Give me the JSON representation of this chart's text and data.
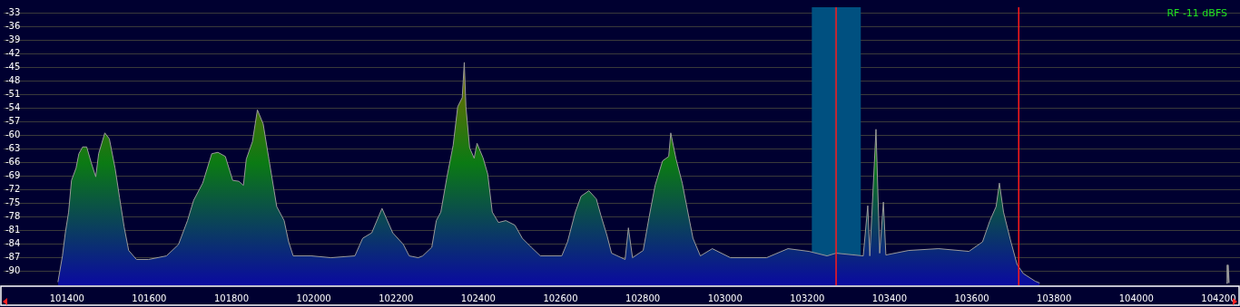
{
  "chart_data": {
    "type": "area",
    "xlim": [
      101246,
      104252
    ],
    "ylim": [
      -93.2,
      -31.7
    ],
    "xticks": [
      101400,
      101600,
      101800,
      102000,
      102200,
      102400,
      102600,
      102800,
      103000,
      103200,
      103400,
      103600,
      103800,
      104000,
      104200
    ],
    "yticks": [
      -90,
      -87,
      -84,
      -81,
      -78,
      -75,
      -72,
      -69,
      -66,
      -63,
      -60,
      -57,
      -54,
      -51,
      -48,
      -45,
      -42,
      -39,
      -36,
      -33
    ],
    "grid": "y",
    "series": [
      {
        "color": "#0b7a14",
        "x": [
          101378,
          101389,
          101396,
          101404,
          101411,
          101422,
          101429,
          101438,
          101448,
          101459,
          101470,
          101477,
          101492,
          101503,
          101517,
          101528,
          101539,
          101550,
          101569,
          101598,
          101642,
          101671,
          101693,
          101708,
          101730,
          101752,
          101767,
          101785,
          101803,
          101818,
          101829,
          101836,
          101851,
          101863,
          101877,
          101891,
          101910,
          101928,
          101939,
          101950,
          101994,
          102042,
          102100,
          102119,
          102141,
          102166,
          102192,
          102218,
          102232,
          102254,
          102265,
          102287,
          102298,
          102309,
          102324,
          102339,
          102350,
          102361,
          102366,
          102370,
          102379,
          102390,
          102397,
          102412,
          102423,
          102434,
          102449,
          102467,
          102489,
          102507,
          102529,
          102551,
          102603,
          102617,
          102636,
          102650,
          102669,
          102687,
          102698,
          102713,
          102724,
          102757,
          102765,
          102775,
          102801,
          102815,
          102830,
          102848,
          102863,
          102868,
          102881,
          102896,
          102907,
          102922,
          102940,
          102969,
          103013,
          103101,
          103153,
          103204,
          103248,
          103270,
          103336,
          103347,
          103352,
          103367,
          103376,
          103385,
          103391,
          103446,
          103519,
          103593,
          103626,
          103644,
          103659,
          103667,
          103677,
          103695,
          103710,
          103725,
          103754,
          103765
        ],
        "values": [
          -92.5,
          -86.7,
          -81.6,
          -77.0,
          -70.0,
          -67.3,
          -64.1,
          -62.6,
          -62.6,
          -66.1,
          -69.2,
          -64.1,
          -59.5,
          -60.8,
          -67.3,
          -73.9,
          -80.3,
          -85.5,
          -87.5,
          -87.5,
          -86.7,
          -84.2,
          -78.9,
          -74.4,
          -70.6,
          -64.1,
          -63.8,
          -64.7,
          -70.0,
          -70.2,
          -71.1,
          -65.3,
          -61.4,
          -54.4,
          -57.5,
          -65.3,
          -75.8,
          -78.9,
          -83.6,
          -86.7,
          -86.7,
          -87.1,
          -86.7,
          -82.8,
          -81.6,
          -76.2,
          -81.6,
          -84.2,
          -86.7,
          -87.1,
          -86.7,
          -84.8,
          -78.9,
          -77.0,
          -69.2,
          -62.2,
          -53.7,
          -51.7,
          -43.9,
          -53.7,
          -62.8,
          -65.1,
          -61.8,
          -65.1,
          -68.6,
          -77.0,
          -79.3,
          -78.9,
          -79.9,
          -82.8,
          -84.8,
          -86.7,
          -86.7,
          -83.6,
          -77.0,
          -73.5,
          -72.3,
          -74.1,
          -77.7,
          -82.2,
          -86.1,
          -87.5,
          -80.5,
          -87.1,
          -85.5,
          -78.3,
          -71.1,
          -65.7,
          -64.7,
          -59.5,
          -65.3,
          -70.6,
          -75.8,
          -82.8,
          -86.7,
          -85.1,
          -87.1,
          -87.1,
          -85.1,
          -85.7,
          -86.7,
          -86.1,
          -86.7,
          -75.6,
          -86.7,
          -58.7,
          -86.1,
          -74.8,
          -86.5,
          -85.5,
          -85.1,
          -85.7,
          -83.6,
          -78.9,
          -75.8,
          -70.6,
          -77.0,
          -83.6,
          -88.6,
          -90.6,
          -92.3,
          -92.7
        ]
      },
      {
        "type": "line",
        "color": "#9a9a9a",
        "x": [
          104219,
          104221,
          104223,
          104225
        ],
        "values": [
          -92.7,
          -88.8,
          -88.8,
          -92.7
        ]
      }
    ],
    "ref_lines": [
      {
        "axis": "x",
        "value": 103270,
        "color": "#ff1a1a"
      },
      {
        "axis": "x",
        "value": 103714,
        "color": "#ff1a1a"
      }
    ],
    "bands": [
      {
        "axis": "x",
        "from": 103211,
        "to": 103330,
        "color": "#005080"
      }
    ],
    "annotations": [
      "RF -11 dBFS"
    ]
  }
}
